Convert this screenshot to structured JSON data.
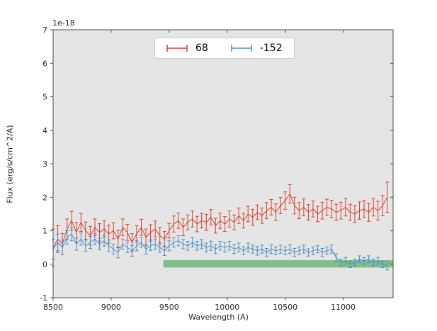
{
  "chart_data": {
    "type": "line",
    "subtype": "errorbar-spectrum",
    "title": "",
    "xlabel": "Wavelength (A)",
    "ylabel": "Flux (erg/s/cm^2/A)",
    "offset_text": "1e-18",
    "xlim": [
      8500,
      11430
    ],
    "ylim": [
      -1,
      7
    ],
    "xticks": [
      8500,
      9000,
      9500,
      10000,
      10500,
      11000
    ],
    "yticks": [
      -1,
      0,
      1,
      2,
      3,
      4,
      5,
      6,
      7
    ],
    "grid": false,
    "plot_background": "#e5e5e5",
    "legend_position": "upper center",
    "legend": [
      {
        "label": "68",
        "color": "#d6402e"
      },
      {
        "label": "-152",
        "color": "#4a90c4"
      }
    ],
    "band": {
      "x0": 9450,
      "x1": 11430,
      "y0": -0.1,
      "y1": 0.12,
      "color": "#2f9e44",
      "opacity": 0.55
    },
    "x": [
      8500,
      8540,
      8580,
      8620,
      8660,
      8700,
      8740,
      8780,
      8820,
      8860,
      8900,
      8940,
      8980,
      9020,
      9060,
      9100,
      9140,
      9180,
      9220,
      9260,
      9300,
      9340,
      9380,
      9420,
      9460,
      9500,
      9540,
      9580,
      9620,
      9660,
      9700,
      9740,
      9780,
      9820,
      9860,
      9900,
      9940,
      9980,
      10020,
      10060,
      10100,
      10140,
      10180,
      10220,
      10260,
      10300,
      10340,
      10380,
      10420,
      10460,
      10500,
      10540,
      10580,
      10620,
      10660,
      10700,
      10740,
      10780,
      10820,
      10860,
      10900,
      10940,
      10980,
      11020,
      11060,
      11100,
      11140,
      11180,
      11220,
      11260,
      11300,
      11340,
      11380
    ],
    "series": [
      {
        "name": "68",
        "color": "#d6402e",
        "y": [
          0.5,
          0.75,
          0.6,
          1.05,
          1.3,
          0.95,
          1.25,
          1.0,
          0.85,
          1.1,
          0.95,
          1.05,
          0.9,
          1.0,
          0.75,
          1.1,
          0.95,
          0.65,
          0.9,
          1.1,
          0.8,
          0.95,
          1.05,
          0.85,
          0.75,
          1.0,
          1.2,
          1.3,
          1.1,
          1.25,
          1.35,
          1.2,
          1.3,
          1.25,
          1.4,
          1.15,
          1.3,
          1.2,
          1.35,
          1.25,
          1.45,
          1.3,
          1.5,
          1.4,
          1.55,
          1.45,
          1.6,
          1.7,
          1.55,
          1.75,
          1.9,
          2.1,
          1.75,
          1.6,
          1.7,
          1.55,
          1.65,
          1.5,
          1.6,
          1.7,
          1.65,
          1.55,
          1.6,
          1.7,
          1.55,
          1.5,
          1.6,
          1.65,
          1.55,
          1.7,
          1.6,
          1.75,
          2.0
        ],
        "err": [
          0.55,
          0.4,
          0.32,
          0.3,
          0.28,
          0.3,
          0.27,
          0.26,
          0.28,
          0.25,
          0.26,
          0.25,
          0.27,
          0.24,
          0.26,
          0.25,
          0.24,
          0.26,
          0.25,
          0.24,
          0.25,
          0.23,
          0.24,
          0.25,
          0.23,
          0.22,
          0.24,
          0.23,
          0.25,
          0.22,
          0.24,
          0.23,
          0.22,
          0.24,
          0.23,
          0.22,
          0.23,
          0.22,
          0.24,
          0.22,
          0.23,
          0.22,
          0.23,
          0.24,
          0.22,
          0.23,
          0.24,
          0.23,
          0.25,
          0.24,
          0.26,
          0.28,
          0.25,
          0.24,
          0.25,
          0.23,
          0.24,
          0.23,
          0.25,
          0.24,
          0.26,
          0.24,
          0.25,
          0.26,
          0.24,
          0.25,
          0.26,
          0.25,
          0.27,
          0.26,
          0.28,
          0.3,
          0.45
        ]
      },
      {
        "name": "-152",
        "color": "#4a90c4",
        "y": [
          0.45,
          0.65,
          0.5,
          0.8,
          0.9,
          0.6,
          0.75,
          0.55,
          0.65,
          0.75,
          0.6,
          0.7,
          0.55,
          0.45,
          0.35,
          0.6,
          0.5,
          0.4,
          0.55,
          0.65,
          0.45,
          0.55,
          0.6,
          0.5,
          0.4,
          0.55,
          0.65,
          0.7,
          0.6,
          0.55,
          0.65,
          0.55,
          0.6,
          0.5,
          0.55,
          0.45,
          0.55,
          0.5,
          0.55,
          0.45,
          0.5,
          0.4,
          0.5,
          0.45,
          0.4,
          0.45,
          0.35,
          0.45,
          0.4,
          0.45,
          0.4,
          0.45,
          0.35,
          0.4,
          0.45,
          0.35,
          0.4,
          0.45,
          0.35,
          0.4,
          0.45,
          0.2,
          0.05,
          0.1,
          0.0,
          0.05,
          0.15,
          0.1,
          0.15,
          0.05,
          0.1,
          0.0,
          -0.05
        ],
        "err": [
          0.3,
          0.25,
          0.22,
          0.2,
          0.2,
          0.18,
          0.18,
          0.17,
          0.18,
          0.16,
          0.17,
          0.16,
          0.17,
          0.15,
          0.16,
          0.15,
          0.15,
          0.16,
          0.15,
          0.14,
          0.15,
          0.14,
          0.15,
          0.14,
          0.14,
          0.15,
          0.14,
          0.15,
          0.14,
          0.13,
          0.14,
          0.13,
          0.14,
          0.13,
          0.14,
          0.13,
          0.13,
          0.14,
          0.13,
          0.13,
          0.13,
          0.12,
          0.13,
          0.12,
          0.13,
          0.12,
          0.12,
          0.13,
          0.12,
          0.12,
          0.12,
          0.13,
          0.12,
          0.12,
          0.12,
          0.11,
          0.12,
          0.11,
          0.12,
          0.11,
          0.12,
          0.11,
          0.1,
          0.1,
          0.1,
          0.1,
          0.1,
          0.1,
          0.1,
          0.1,
          0.1,
          0.1,
          0.12
        ]
      }
    ]
  }
}
